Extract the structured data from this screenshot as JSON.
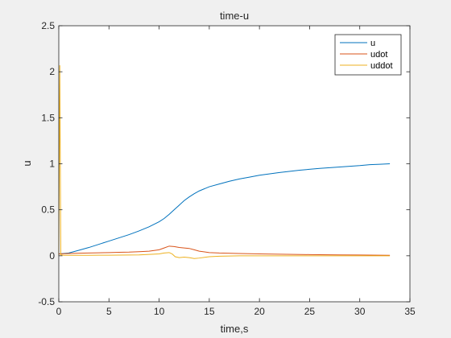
{
  "chart_data": {
    "type": "line",
    "title": "time-u",
    "xlabel": "time,s",
    "ylabel": "u",
    "xlim": [
      0,
      35
    ],
    "ylim": [
      -0.5,
      2.5
    ],
    "xticks": [
      "0",
      "5",
      "10",
      "15",
      "20",
      "25",
      "30",
      "35"
    ],
    "yticks": [
      "-0.5",
      "0",
      "0.5",
      "1",
      "1.5",
      "2",
      "2.5"
    ],
    "grid": false,
    "legend_position": "top-right",
    "series": [
      {
        "name": "u",
        "color": "#0072BD",
        "x": [
          0,
          1,
          2,
          3,
          4,
          5,
          6,
          7,
          8,
          9,
          10,
          10.5,
          11,
          11.5,
          12,
          12.5,
          13,
          13.5,
          14,
          15,
          16,
          17,
          18,
          19,
          20,
          22,
          24,
          26,
          28,
          30,
          31,
          32,
          33
        ],
        "y": [
          0.02,
          0.03,
          0.06,
          0.09,
          0.125,
          0.16,
          0.195,
          0.23,
          0.27,
          0.315,
          0.37,
          0.405,
          0.45,
          0.5,
          0.55,
          0.6,
          0.64,
          0.675,
          0.705,
          0.75,
          0.78,
          0.81,
          0.835,
          0.855,
          0.875,
          0.905,
          0.93,
          0.95,
          0.965,
          0.98,
          0.99,
          0.995,
          1.0
        ]
      },
      {
        "name": "udot",
        "color": "#D95319",
        "x": [
          0,
          0.3,
          1,
          2,
          3,
          4,
          5,
          6,
          7,
          8,
          9,
          10,
          10.5,
          11,
          11.5,
          12,
          12.5,
          13,
          13.5,
          14,
          15,
          16,
          18,
          20,
          22,
          25,
          28,
          30,
          32,
          33
        ],
        "y": [
          0.02,
          0.022,
          0.025,
          0.028,
          0.03,
          0.032,
          0.035,
          0.038,
          0.04,
          0.045,
          0.05,
          0.065,
          0.085,
          0.105,
          0.1,
          0.09,
          0.085,
          0.08,
          0.065,
          0.05,
          0.035,
          0.03,
          0.025,
          0.02,
          0.017,
          0.013,
          0.01,
          0.008,
          0.006,
          0.005
        ]
      },
      {
        "name": "uddot",
        "color": "#EDB120",
        "x": [
          0,
          0.1,
          0.2,
          0.5,
          1,
          2,
          3,
          4,
          5,
          6,
          7,
          8,
          9,
          10,
          10.5,
          11,
          11.3,
          11.6,
          12,
          12.5,
          13,
          13.5,
          14,
          15,
          16,
          18,
          20,
          25,
          30,
          33
        ],
        "y": [
          0.0,
          2.07,
          0.01,
          0.005,
          0.005,
          0.005,
          0.005,
          0.006,
          0.006,
          0.007,
          0.008,
          0.01,
          0.015,
          0.02,
          0.03,
          0.035,
          0.02,
          -0.01,
          -0.02,
          -0.015,
          -0.02,
          -0.03,
          -0.025,
          -0.01,
          -0.005,
          0.0,
          0.0,
          0.0,
          0.0,
          0.0
        ]
      }
    ]
  }
}
